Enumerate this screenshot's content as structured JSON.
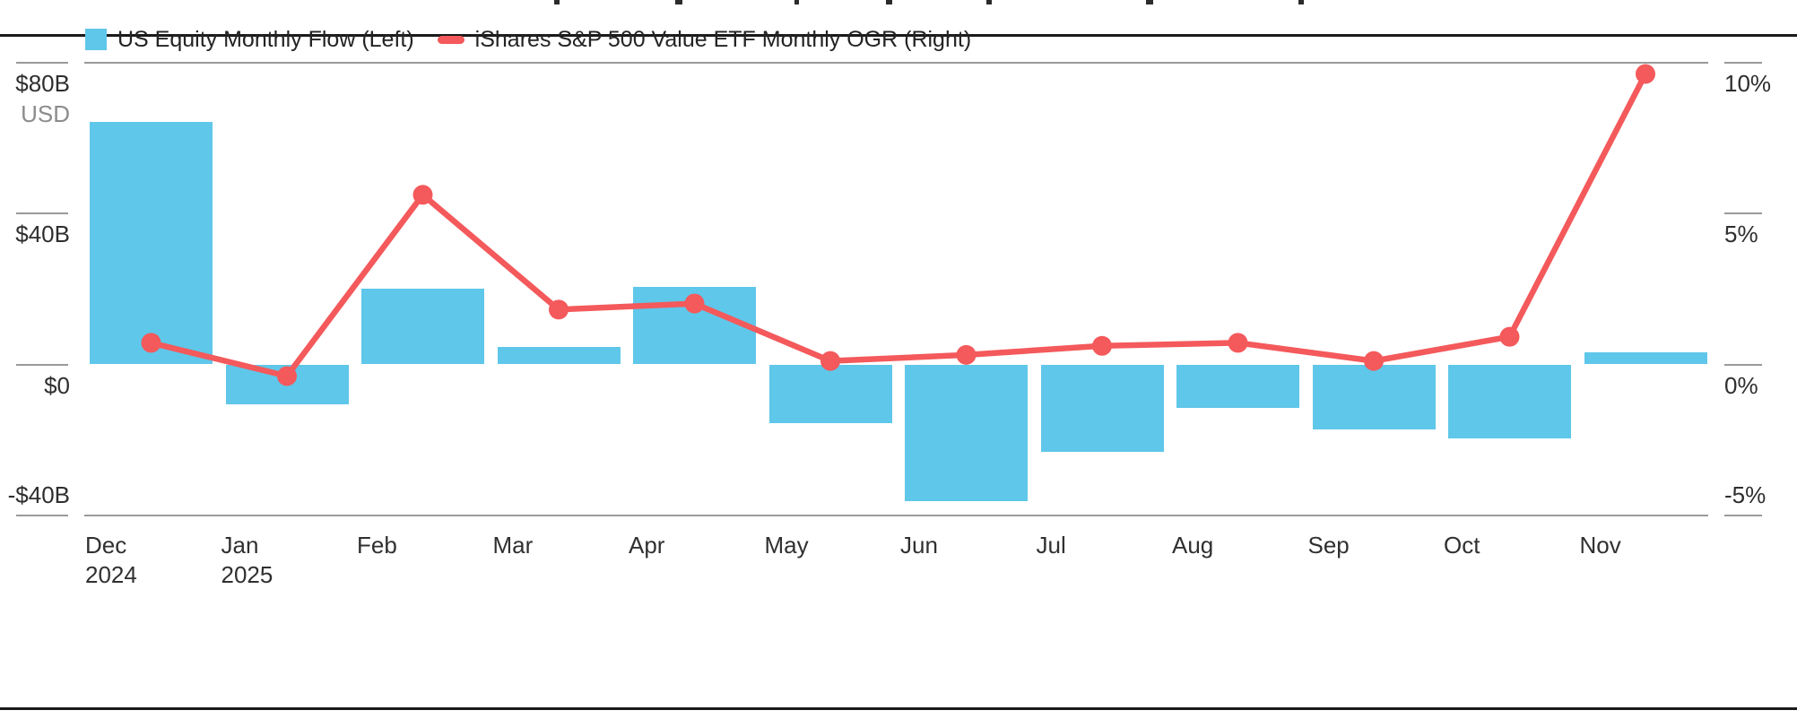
{
  "legend": {
    "items": [
      {
        "label": "US Equity Monthly Flow (Left)",
        "marker": "square",
        "color": "#5FC7E9"
      },
      {
        "label": "iShares S&P 500 Value ETF Monthly OGR (Right)",
        "marker": "dash",
        "color": "#F4595B"
      }
    ]
  },
  "axes": {
    "left": {
      "ticks": [
        "$80B",
        "$40B",
        "$0",
        "-$40B"
      ],
      "unit_label": "USD"
    },
    "right": {
      "ticks": [
        "10%",
        "5%",
        "0%",
        "-5%"
      ]
    },
    "x": {
      "labels": [
        "Dec",
        "Jan",
        "Feb",
        "Mar",
        "Apr",
        "May",
        "Jun",
        "Jul",
        "Aug",
        "Sep",
        "Oct",
        "Nov"
      ],
      "year_labels": [
        {
          "text": "2024",
          "index": 0
        },
        {
          "text": "2025",
          "index": 1
        }
      ]
    }
  },
  "chart_data": {
    "type": "combo",
    "categories": [
      "Dec 2024",
      "Jan 2025",
      "Feb",
      "Mar",
      "Apr",
      "May",
      "Jun",
      "Jul",
      "Aug",
      "Sep",
      "Oct",
      "Nov"
    ],
    "series": [
      {
        "name": "US Equity Monthly Flow (Left)",
        "type": "bar",
        "axis": "left",
        "unit": "$B USD",
        "color": "#5FC7E9",
        "values": [
          64,
          -10.5,
          20,
          4.5,
          20.5,
          -15.5,
          -36,
          -23,
          -11.5,
          -17,
          -19.5,
          3
        ]
      },
      {
        "name": "iShares S&P 500 Value ETF Monthly OGR (Right)",
        "type": "line",
        "axis": "right",
        "unit": "%",
        "color": "#F4595B",
        "values": [
          0.7,
          -0.4,
          5.6,
          1.8,
          2.0,
          0.1,
          0.3,
          0.6,
          0.7,
          0.1,
          0.9,
          9.6
        ]
      }
    ],
    "left_axis": {
      "title": "USD",
      "tick_values": [
        80,
        40,
        0,
        -40
      ],
      "tick_labels": [
        "$80B",
        "$40B",
        "$0",
        "-$40B"
      ],
      "range": [
        -40,
        80
      ]
    },
    "right_axis": {
      "tick_values": [
        10,
        5,
        0,
        -5
      ],
      "tick_labels": [
        "10%",
        "5%",
        "0%",
        "-5%"
      ],
      "range": [
        -5,
        10
      ]
    },
    "grid": "horizontal boundary lines at top and bottom only",
    "legend_position": "top-left"
  }
}
